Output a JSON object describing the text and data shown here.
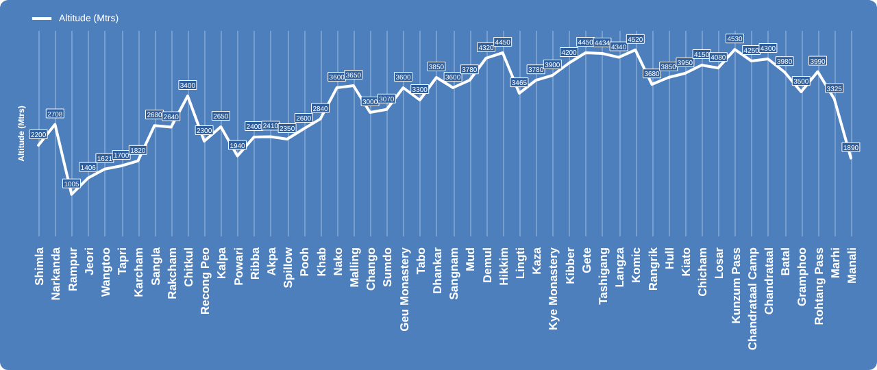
{
  "chart_data": {
    "type": "line",
    "ylabel": "Altitude (Mtrs)",
    "categories": [
      "Shimla",
      "Narkanda",
      "Rampur",
      "Jeori",
      "Wangtoo",
      "Tapri",
      "Karcham",
      "Sangla",
      "Rakcham",
      "Chitkul",
      "Recong Peo",
      "Kalpa",
      "Powari",
      "Ribba",
      "Akpa",
      "Spillow",
      "Pooh",
      "Khab",
      "Nako",
      "Malling",
      "Chango",
      "Sumdo",
      "Geu Monastery",
      "Tabo",
      "Dhankar",
      "Sangnam",
      "Mud",
      "Demul",
      "Hikkim",
      "Lingti",
      "Kaza",
      "Kye Monastery",
      "Kibber",
      "Gete",
      "Tashigang",
      "Langza",
      "Komic",
      "Rangrik",
      "Hull",
      "Kiato",
      "Chicham",
      "Losar",
      "Kunzum  Pass",
      "Chandrataal  Camp",
      "Chandrataal",
      "Batal",
      "Gramphoo",
      "Rohtang  Pass",
      "Marhi",
      "Manali"
    ],
    "series": [
      {
        "name": "Altitude (Mtrs)",
        "color": "#ffffff",
        "values": [
          2200,
          2708,
          1005,
          1406,
          1621,
          1700,
          1820,
          2680,
          2640,
          3400,
          2300,
          2650,
          1940,
          2400,
          2410,
          2350,
          2600,
          2840,
          3600,
          3650,
          3000,
          3070,
          3600,
          3300,
          3850,
          3600,
          3780,
          4320,
          4450,
          3465,
          3780,
          3900,
          4200,
          4450,
          4434,
          4340,
          4520,
          3680,
          3850,
          3950,
          4150,
          4080,
          4530,
          4250,
          4300,
          3980,
          3500,
          3990,
          3325,
          1890
        ]
      }
    ],
    "ylim": [
      0,
      5000
    ],
    "tick_labels": "x",
    "grid": "x",
    "legend": "top",
    "marker": "none",
    "line_style": "solid",
    "data_labels": true
  }
}
